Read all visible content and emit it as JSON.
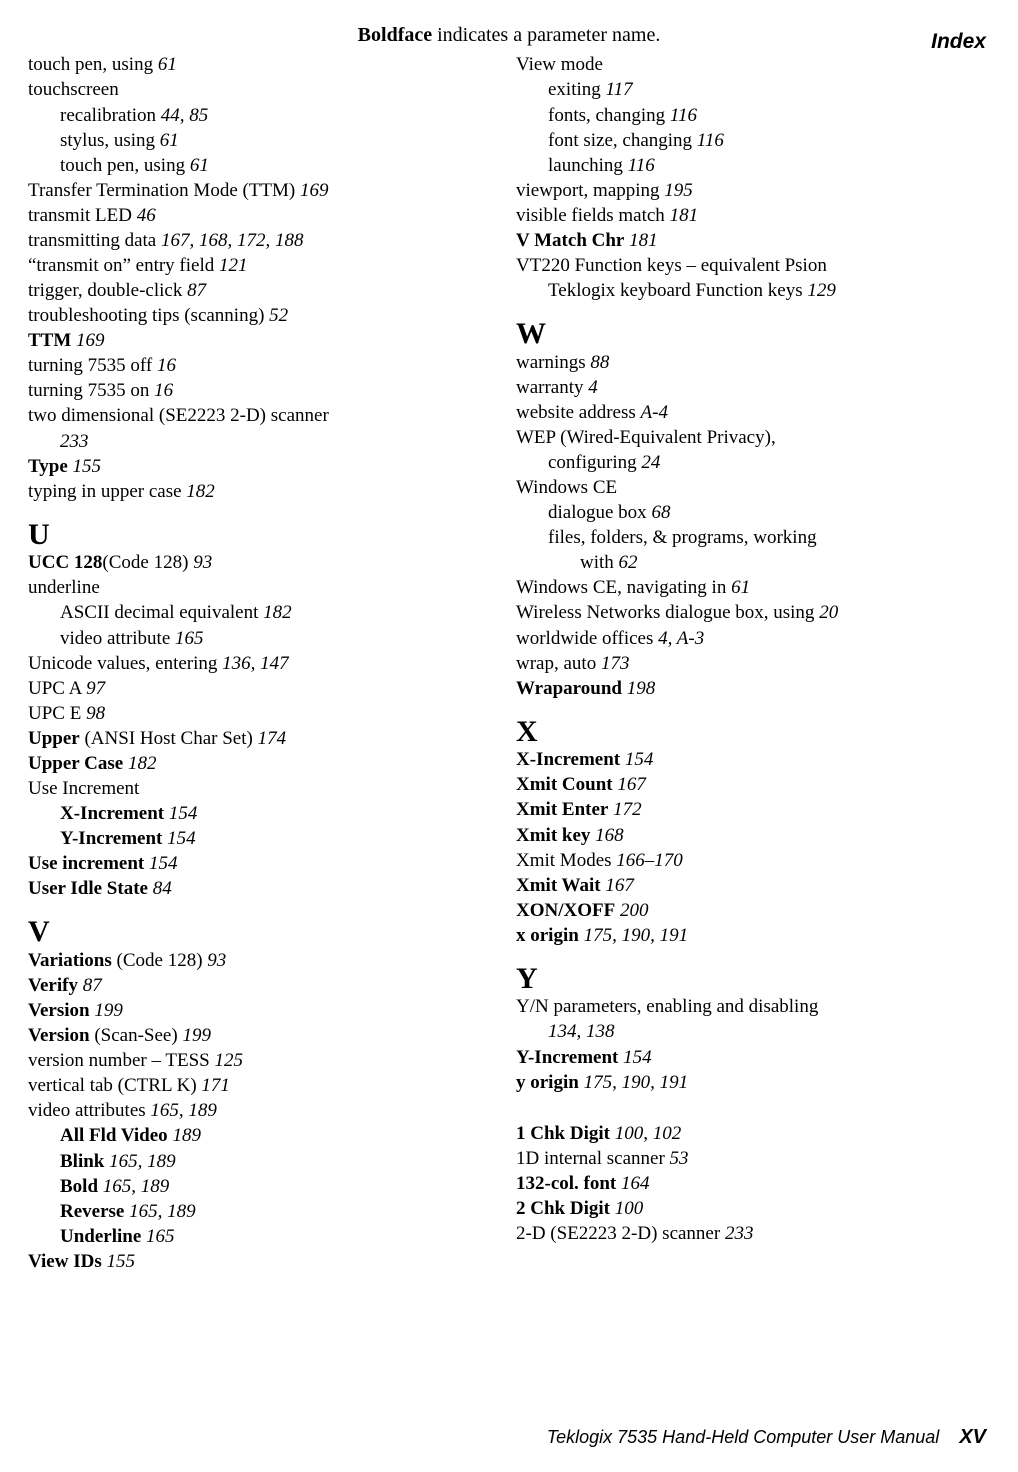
{
  "header": {
    "label": "Index"
  },
  "subtitle": {
    "bold": "Boldface",
    "rest": " indicates a parameter name."
  },
  "footer": {
    "text": "Teklogix 7535 Hand-Held Computer User Manual",
    "page": "XV"
  },
  "left": {
    "items": [
      {
        "t": "touch pen, using   ",
        "p": "61"
      },
      {
        "t": "touchscreen"
      },
      {
        "sub": true,
        "t": "recalibration   ",
        "p": "44, 85"
      },
      {
        "sub": true,
        "t": "stylus, using   ",
        "p": "61"
      },
      {
        "sub": true,
        "t": "touch pen, using   ",
        "p": "61"
      },
      {
        "t": "Transfer Termination Mode (TTM)   ",
        "p": "169"
      },
      {
        "t": "transmit LED   ",
        "p": "46"
      },
      {
        "t": "transmitting data   ",
        "p": "167, 168, 172, 188"
      },
      {
        "t": "“transmit on” entry field   ",
        "p": "121"
      },
      {
        "t": "trigger, double-click   ",
        "p": "87"
      },
      {
        "t": "troubleshooting tips (scanning)   ",
        "p": "52"
      },
      {
        "bold": true,
        "t": "TTM",
        "after": "   ",
        "p": "169"
      },
      {
        "t": "turning 7535 off   ",
        "p": "16"
      },
      {
        "t": "turning 7535 on   ",
        "p": "16"
      },
      {
        "t": "two dimensional (SE2223 2-D) scanner   "
      },
      {
        "sub": true,
        "p": "233"
      },
      {
        "bold": true,
        "t": "Type",
        "after": "   ",
        "p": "155"
      },
      {
        "t": "typing in upper case   ",
        "p": "182"
      }
    ],
    "U_head": "U",
    "U": [
      {
        "bold": true,
        "t": "UCC 128",
        "after": "(Code 128)   ",
        "p": "93"
      },
      {
        "t": "underline"
      },
      {
        "sub": true,
        "t": "ASCII decimal equivalent   ",
        "p": "182"
      },
      {
        "sub": true,
        "t": "video attribute   ",
        "p": "165"
      },
      {
        "t": "Unicode values, entering   ",
        "p": "136, 147"
      },
      {
        "t": "UPC A   ",
        "p": "97"
      },
      {
        "t": "UPC E   ",
        "p": "98"
      },
      {
        "bold": true,
        "t": "Upper",
        "after": "  (ANSI Host Char Set)   ",
        "p": "174"
      },
      {
        "bold": true,
        "t": "Upper Case",
        "after": "   ",
        "p": "182"
      },
      {
        "t": "Use Increment"
      },
      {
        "sub": true,
        "bold": true,
        "t": "X-Increment",
        "after": "   ",
        "p": "154"
      },
      {
        "sub": true,
        "bold": true,
        "t": "Y-Increment",
        "after": "   ",
        "p": "154"
      },
      {
        "bold": true,
        "t": "Use increment",
        "after": "   ",
        "p": "154"
      },
      {
        "bold": true,
        "t": "User Idle State",
        "after": "   ",
        "p": "84"
      }
    ],
    "V_head": "V",
    "V": [
      {
        "bold": true,
        "t": "Variations",
        "after": "  (Code 128)   ",
        "p": "93"
      },
      {
        "bold": true,
        "t": "Verify",
        "after": "   ",
        "p": "87"
      },
      {
        "bold": true,
        "t": "Version",
        "after": "   ",
        "p": "199"
      },
      {
        "bold": true,
        "t": "Version",
        "after": " (Scan-See)   ",
        "p": "199"
      },
      {
        "t": "version number – TESS   ",
        "p": "125"
      },
      {
        "t": "vertical tab (CTRL K)   ",
        "p": "171"
      },
      {
        "t": "video attributes   ",
        "p": "165, 189"
      },
      {
        "sub": true,
        "bold": true,
        "t": "All Fld Video",
        "after": "   ",
        "p": "189"
      },
      {
        "sub": true,
        "bold": true,
        "t": "Blink",
        "after": "   ",
        "p": "165, 189"
      },
      {
        "sub": true,
        "bold": true,
        "t": "Bold",
        "after": "   ",
        "p": "165, 189"
      },
      {
        "sub": true,
        "bold": true,
        "t": "Reverse",
        "after": "   ",
        "p": "165, 189"
      },
      {
        "sub": true,
        "bold": true,
        "t": "Underline",
        "after": "   ",
        "p": "165"
      },
      {
        "bold": true,
        "t": "View IDs",
        "after": "   ",
        "p": "155"
      }
    ]
  },
  "right": {
    "topitems": [
      {
        "t": "View mode"
      },
      {
        "sub": true,
        "t": "exiting   ",
        "p": "117"
      },
      {
        "sub": true,
        "t": "fonts, changing   ",
        "p": "116"
      },
      {
        "sub": true,
        "t": "font size, changing   ",
        "p": "116"
      },
      {
        "sub": true,
        "t": "launching   ",
        "p": "116"
      },
      {
        "t": "viewport, mapping   ",
        "p": "195"
      },
      {
        "t": "visible fields match   ",
        "p": "181"
      },
      {
        "bold": true,
        "t": "V Match Chr",
        "after": "   ",
        "p": "181"
      },
      {
        "t": "VT220 Function keys – equivalent Psion "
      },
      {
        "sub": true,
        "t": "Teklogix keyboard Function keys   ",
        "p": "129"
      }
    ],
    "W_head": "W",
    "W": [
      {
        "t": "warnings   ",
        "p": "88"
      },
      {
        "t": "warranty   ",
        "p": "4"
      },
      {
        "t": "website address   ",
        "p": "A-4"
      },
      {
        "t": "WEP (Wired-Equivalent Privacy), "
      },
      {
        "sub": true,
        "t": "configuring   ",
        "p": "24"
      },
      {
        "t": "Windows CE"
      },
      {
        "sub": true,
        "t": "dialogue box   ",
        "p": "68"
      },
      {
        "sub": true,
        "t": "files, folders, & programs, working "
      },
      {
        "sub2": true,
        "t": "with   ",
        "p": "62"
      },
      {
        "t": "Windows CE, navigating in   ",
        "p": "61"
      },
      {
        "t": "Wireless Networks dialogue box, using   ",
        "p": "20"
      },
      {
        "t": "worldwide offices   ",
        "p": "4, A-3"
      },
      {
        "t": "wrap, auto   ",
        "p": "173"
      },
      {
        "bold": true,
        "t": "Wraparound",
        "after": "   ",
        "p": "198"
      }
    ],
    "X_head": "X",
    "X": [
      {
        "bold": true,
        "t": "X-Increment",
        "after": "   ",
        "p": "154"
      },
      {
        "bold": true,
        "t": "Xmit Count",
        "after": "   ",
        "p": "167"
      },
      {
        "bold": true,
        "t": "Xmit Enter",
        "after": "   ",
        "p": "172"
      },
      {
        "bold": true,
        "t": "Xmit key",
        "after": "   ",
        "p": "168"
      },
      {
        "t": "Xmit Modes   ",
        "p": "166–170"
      },
      {
        "bold": true,
        "t": "Xmit Wait",
        "after": "   ",
        "p": "167"
      },
      {
        "bold": true,
        "t": "XON/XOFF",
        "after": "   ",
        "p": "200"
      },
      {
        "bold": true,
        "t": "x origin",
        "after": "   ",
        "p": "175, 190, 191"
      }
    ],
    "Y_head": "Y",
    "Y": [
      {
        "t": "Y/N parameters, enabling and disabling   "
      },
      {
        "sub": true,
        "p": "134, 138"
      },
      {
        "bold": true,
        "t": "Y-Increment",
        "after": "   ",
        "p": "154"
      },
      {
        "bold": true,
        "t": "y origin",
        "after": "   ",
        "p": "175, 190, 191"
      }
    ],
    "nums": [
      {
        "bold": true,
        "t": "1 Chk Digit",
        "after": "   ",
        "p": "100, 102"
      },
      {
        "t": "1D internal scanner   ",
        "p": "53"
      },
      {
        "bold": true,
        "t": "132-col. font",
        "after": "   ",
        "p": "164"
      },
      {
        "bold": true,
        "t": "2 Chk Digit",
        "after": "   ",
        "p": "100"
      },
      {
        "t": "2-D (SE2223 2-D) scanner   ",
        "p": "233"
      }
    ]
  }
}
